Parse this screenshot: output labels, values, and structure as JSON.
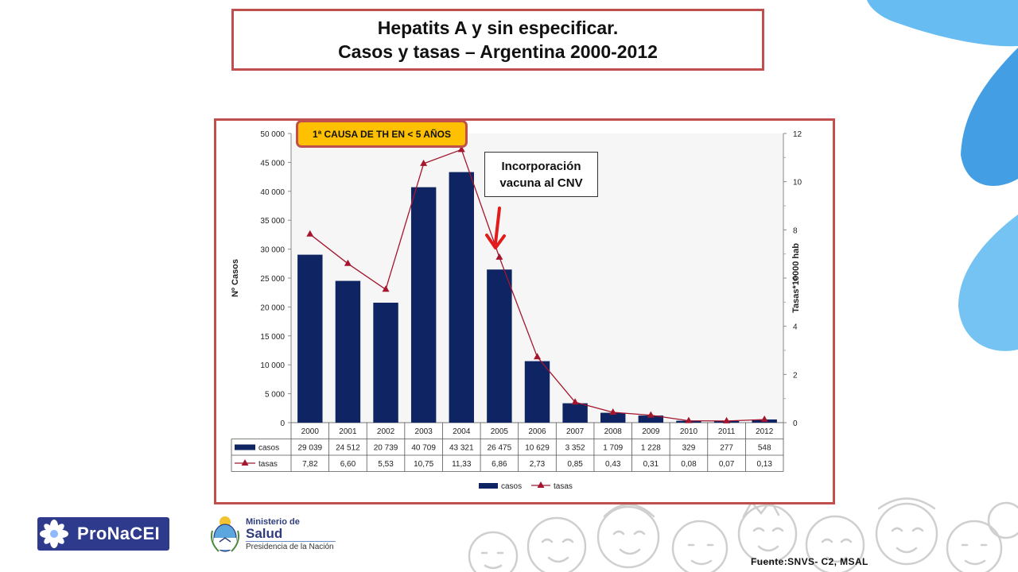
{
  "slide": {
    "title_line1": "Hepatits A y sin especificar.",
    "title_line2": "Casos y tasas – Argentina 2000-2012",
    "callout_cause": "1ª  CAUSA DE TH EN < 5 AÑOS",
    "callout_vaccine_line1": "Incorporación",
    "callout_vaccine_line2": "vacuna al CNV",
    "source": "Fuente:SNVS- C2, MSAL",
    "logo_pronacei": "ProNaCEI",
    "logo_ministerio_line1": "Ministerio de",
    "logo_ministerio_line2": "Salud",
    "logo_ministerio_line3": "Presidencia de la Nación"
  },
  "colors": {
    "accent_border": "#c0504d",
    "callout_fill": "#ffc000",
    "bar_color": "#0f2462",
    "line_color": "#a3162e",
    "decor_blue": "#3aa0e6"
  },
  "icons": [
    "pronacei-flower-icon",
    "argentina-shield-icon",
    "red-arrow-icon"
  ],
  "chart_data": {
    "type": "bar",
    "categories": [
      "2000",
      "2001",
      "2002",
      "2003",
      "2004",
      "2005",
      "2006",
      "2007",
      "2008",
      "2009",
      "2010",
      "2011",
      "2012"
    ],
    "series": [
      {
        "name": "casos",
        "type": "bar",
        "axis": "left",
        "values": [
          29039,
          24512,
          20739,
          40709,
          43321,
          26475,
          10629,
          3352,
          1709,
          1228,
          329,
          277,
          548
        ],
        "labels": [
          "29 039",
          "24 512",
          "20 739",
          "40 709",
          "43 321",
          "26 475",
          "10 629",
          "3 352",
          "1 709",
          "1 228",
          "329",
          "277",
          "548"
        ]
      },
      {
        "name": "tasas",
        "type": "line",
        "axis": "right",
        "values": [
          7.82,
          6.6,
          5.53,
          10.75,
          11.33,
          6.86,
          2.73,
          0.85,
          0.43,
          0.31,
          0.08,
          0.07,
          0.13
        ],
        "labels": [
          "7,82",
          "6,60",
          "5,53",
          "10,75",
          "11,33",
          "6,86",
          "2,73",
          "0,85",
          "0,43",
          "0,31",
          "0,08",
          "0,07",
          "0,13"
        ]
      }
    ],
    "ylabel": "Nº Casos",
    "ylabel_right": "Tasas*10000 hab",
    "ylim": [
      0,
      50000
    ],
    "ylim_right": [
      0,
      12
    ],
    "yticks": [
      "0",
      "5 000",
      "10 000",
      "15 000",
      "20 000",
      "25 000",
      "30 000",
      "35 000",
      "40 000",
      "45 000",
      "50 000"
    ],
    "yticks_right": [
      "0",
      "2",
      "4",
      "6",
      "8",
      "10",
      "12"
    ],
    "grid": false,
    "legend": "bottom-center",
    "data_table": true
  }
}
